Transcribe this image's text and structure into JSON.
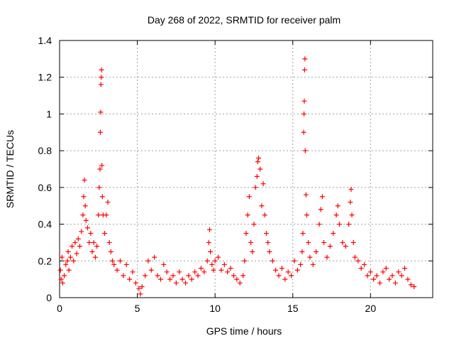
{
  "chart_data": {
    "type": "scatter",
    "title": "Day 268 of 2022, SRMTID for receiver palm",
    "xlabel": "GPS time / hours",
    "ylabel": "SRMTID / TECUs",
    "xlim": [
      0,
      24
    ],
    "ylim": [
      0,
      1.4
    ],
    "grid": true,
    "marker": "+",
    "x_ticks": [
      0,
      5,
      10,
      15,
      20
    ],
    "x_tick_labels": [
      "0",
      "5",
      "10",
      "15",
      "20"
    ],
    "y_ticks": [
      0,
      0.2,
      0.4,
      0.6,
      0.8,
      1,
      1.2,
      1.4
    ],
    "y_tick_labels": [
      "0",
      "0.2",
      "0.4",
      "0.6",
      "0.8",
      "1",
      "1.2",
      "1.4"
    ],
    "series": [
      {
        "name": "SRMTID",
        "color": "#ff0000",
        "points": [
          [
            0.05,
            0.15
          ],
          [
            0.1,
            0.1
          ],
          [
            0.15,
            0.22
          ],
          [
            0.2,
            0.08
          ],
          [
            0.3,
            0.12
          ],
          [
            0.4,
            0.18
          ],
          [
            0.5,
            0.2
          ],
          [
            0.55,
            0.25
          ],
          [
            0.6,
            0.15
          ],
          [
            0.7,
            0.22
          ],
          [
            0.8,
            0.28
          ],
          [
            0.9,
            0.2
          ],
          [
            1.0,
            0.3
          ],
          [
            1.1,
            0.24
          ],
          [
            1.2,
            0.32
          ],
          [
            1.3,
            0.28
          ],
          [
            1.4,
            0.36
          ],
          [
            1.5,
            0.45
          ],
          [
            1.55,
            0.55
          ],
          [
            1.6,
            0.64
          ],
          [
            1.65,
            0.5
          ],
          [
            1.7,
            0.42
          ],
          [
            1.8,
            0.38
          ],
          [
            1.9,
            0.3
          ],
          [
            2.0,
            0.35
          ],
          [
            2.1,
            0.25
          ],
          [
            2.2,
            0.3
          ],
          [
            2.3,
            0.22
          ],
          [
            2.4,
            0.28
          ],
          [
            2.5,
            0.45
          ],
          [
            2.55,
            0.6
          ],
          [
            2.6,
            0.7
          ],
          [
            2.62,
            0.9
          ],
          [
            2.64,
            1.01
          ],
          [
            2.66,
            1.16
          ],
          [
            2.68,
            1.2
          ],
          [
            2.7,
            1.24
          ],
          [
            2.72,
            0.72
          ],
          [
            2.75,
            0.55
          ],
          [
            2.8,
            0.45
          ],
          [
            2.9,
            0.35
          ],
          [
            3.0,
            0.45
          ],
          [
            3.1,
            0.52
          ],
          [
            3.2,
            0.3
          ],
          [
            3.3,
            0.25
          ],
          [
            3.4,
            0.2
          ],
          [
            3.5,
            0.18
          ],
          [
            3.7,
            0.15
          ],
          [
            3.9,
            0.2
          ],
          [
            4.1,
            0.12
          ],
          [
            4.3,
            0.18
          ],
          [
            4.5,
            0.1
          ],
          [
            4.7,
            0.14
          ],
          [
            4.9,
            0.08
          ],
          [
            5.1,
            0.05
          ],
          [
            5.2,
            0.02
          ],
          [
            5.3,
            0.06
          ],
          [
            5.5,
            0.12
          ],
          [
            5.7,
            0.2
          ],
          [
            5.9,
            0.15
          ],
          [
            6.1,
            0.22
          ],
          [
            6.3,
            0.12
          ],
          [
            6.5,
            0.1
          ],
          [
            6.7,
            0.18
          ],
          [
            6.9,
            0.14
          ],
          [
            7.1,
            0.1
          ],
          [
            7.3,
            0.12
          ],
          [
            7.5,
            0.08
          ],
          [
            7.7,
            0.14
          ],
          [
            7.9,
            0.1
          ],
          [
            8.1,
            0.08
          ],
          [
            8.3,
            0.12
          ],
          [
            8.5,
            0.1
          ],
          [
            8.7,
            0.14
          ],
          [
            8.9,
            0.12
          ],
          [
            9.1,
            0.16
          ],
          [
            9.3,
            0.14
          ],
          [
            9.5,
            0.2
          ],
          [
            9.6,
            0.3
          ],
          [
            9.65,
            0.37
          ],
          [
            9.7,
            0.25
          ],
          [
            9.8,
            0.18
          ],
          [
            9.9,
            0.15
          ],
          [
            10.0,
            0.2
          ],
          [
            10.2,
            0.22
          ],
          [
            10.4,
            0.15
          ],
          [
            10.6,
            0.18
          ],
          [
            10.8,
            0.14
          ],
          [
            11.0,
            0.16
          ],
          [
            11.2,
            0.12
          ],
          [
            11.4,
            0.1
          ],
          [
            11.6,
            0.08
          ],
          [
            11.8,
            0.12
          ],
          [
            11.9,
            0.2
          ],
          [
            12.0,
            0.35
          ],
          [
            12.1,
            0.45
          ],
          [
            12.2,
            0.55
          ],
          [
            12.3,
            0.3
          ],
          [
            12.4,
            0.25
          ],
          [
            12.5,
            0.4
          ],
          [
            12.6,
            0.6
          ],
          [
            12.7,
            0.66
          ],
          [
            12.75,
            0.74
          ],
          [
            12.8,
            0.76
          ],
          [
            12.9,
            0.7
          ],
          [
            13.0,
            0.5
          ],
          [
            13.1,
            0.62
          ],
          [
            13.2,
            0.45
          ],
          [
            13.3,
            0.35
          ],
          [
            13.4,
            0.3
          ],
          [
            13.5,
            0.25
          ],
          [
            13.7,
            0.2
          ],
          [
            13.9,
            0.15
          ],
          [
            14.1,
            0.12
          ],
          [
            14.3,
            0.16
          ],
          [
            14.5,
            0.1
          ],
          [
            14.7,
            0.14
          ],
          [
            14.9,
            0.12
          ],
          [
            15.1,
            0.2
          ],
          [
            15.3,
            0.15
          ],
          [
            15.5,
            0.18
          ],
          [
            15.6,
            0.25
          ],
          [
            15.65,
            0.35
          ],
          [
            15.7,
            0.9
          ],
          [
            15.72,
            1.0
          ],
          [
            15.74,
            1.07
          ],
          [
            15.76,
            1.24
          ],
          [
            15.78,
            1.3
          ],
          [
            15.8,
            0.8
          ],
          [
            15.85,
            0.56
          ],
          [
            15.9,
            0.45
          ],
          [
            16.0,
            0.3
          ],
          [
            16.1,
            0.22
          ],
          [
            16.3,
            0.18
          ],
          [
            16.5,
            0.25
          ],
          [
            16.7,
            0.4
          ],
          [
            16.8,
            0.48
          ],
          [
            16.9,
            0.55
          ],
          [
            17.0,
            0.3
          ],
          [
            17.2,
            0.22
          ],
          [
            17.4,
            0.28
          ],
          [
            17.6,
            0.35
          ],
          [
            17.8,
            0.45
          ],
          [
            17.9,
            0.5
          ],
          [
            18.0,
            0.4
          ],
          [
            18.2,
            0.3
          ],
          [
            18.4,
            0.28
          ],
          [
            18.6,
            0.4
          ],
          [
            18.7,
            0.52
          ],
          [
            18.75,
            0.59
          ],
          [
            18.8,
            0.45
          ],
          [
            18.9,
            0.3
          ],
          [
            19.0,
            0.22
          ],
          [
            19.2,
            0.2
          ],
          [
            19.4,
            0.16
          ],
          [
            19.6,
            0.18
          ],
          [
            19.8,
            0.12
          ],
          [
            20.0,
            0.14
          ],
          [
            20.2,
            0.1
          ],
          [
            20.4,
            0.12
          ],
          [
            20.6,
            0.08
          ],
          [
            20.8,
            0.14
          ],
          [
            21.0,
            0.16
          ],
          [
            21.2,
            0.1
          ],
          [
            21.4,
            0.12
          ],
          [
            21.6,
            0.08
          ],
          [
            21.8,
            0.14
          ],
          [
            22.0,
            0.12
          ],
          [
            22.2,
            0.16
          ],
          [
            22.4,
            0.1
          ],
          [
            22.6,
            0.07
          ],
          [
            22.8,
            0.06
          ]
        ]
      }
    ]
  }
}
